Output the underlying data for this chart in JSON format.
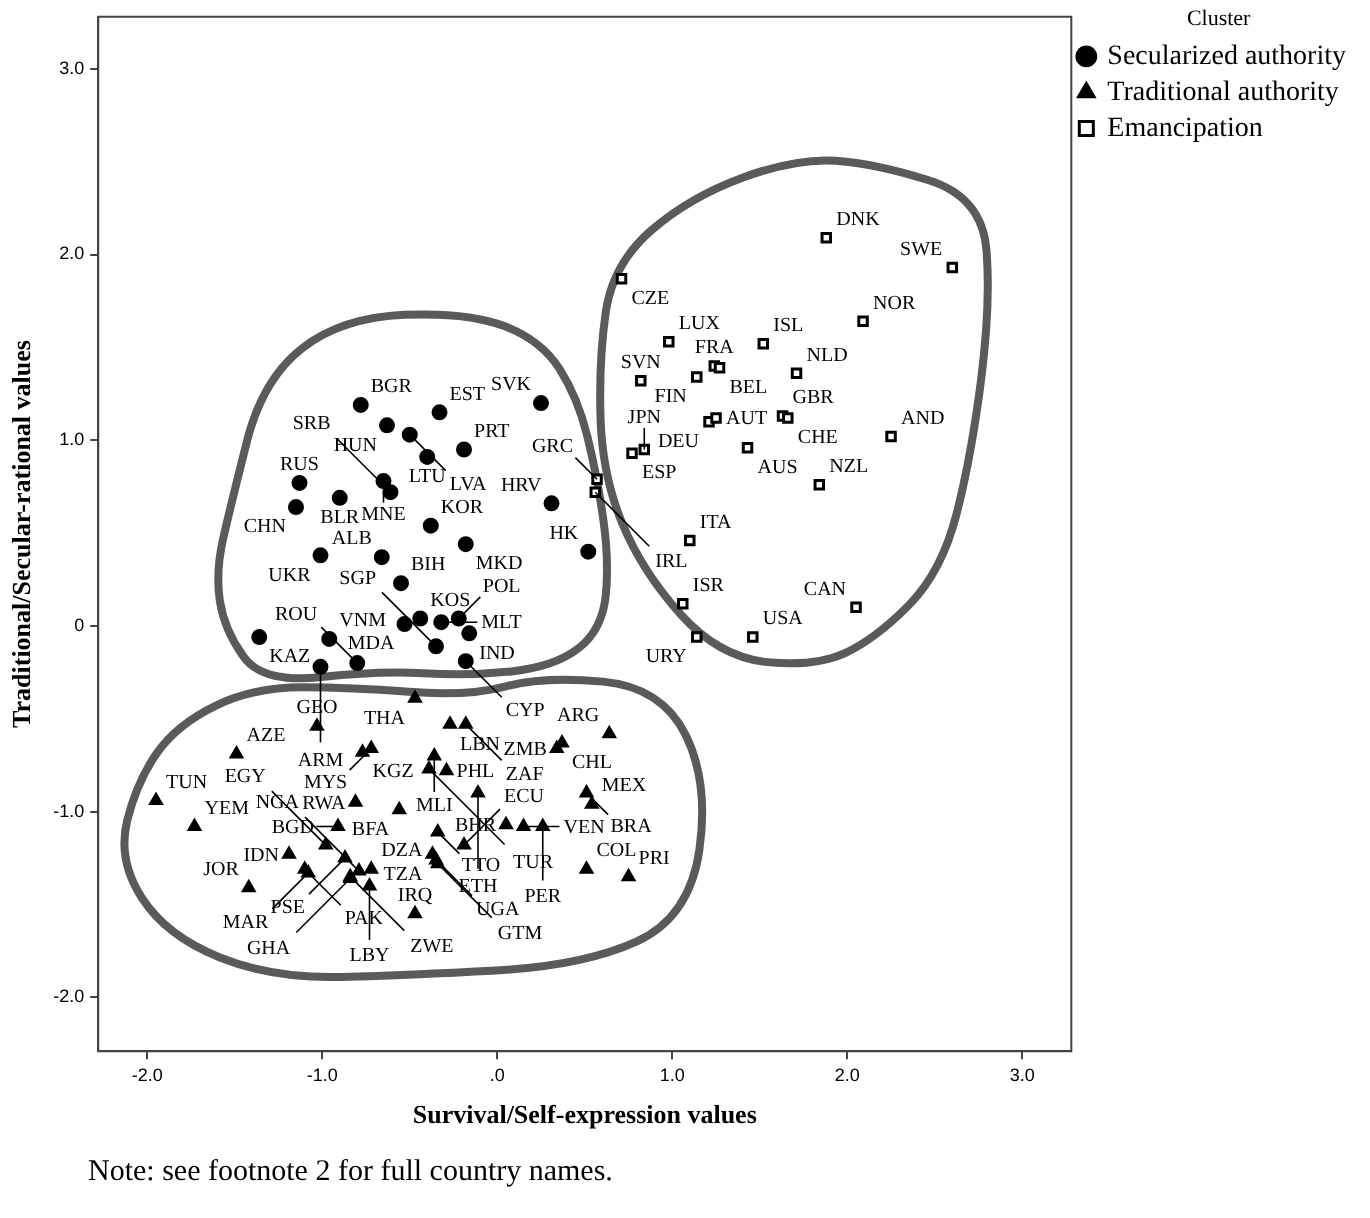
{
  "chart_data": {
    "type": "scatter",
    "xlabel": "Survival/Self-expression values",
    "ylabel": "Traditional/Secular-rational values",
    "legend_title": "Cluster",
    "legend": "top right",
    "grid": false,
    "xlim": [
      -2.28,
      3.28
    ],
    "xticks": [
      {
        "value": -2,
        "label": "-2.0"
      },
      {
        "value": -1,
        "label": "-1.0"
      },
      {
        "value": 0,
        "label": ".0"
      },
      {
        "value": 1,
        "label": "1.0"
      },
      {
        "value": 2,
        "label": "2.0"
      },
      {
        "value": 3,
        "label": "3.0"
      }
    ],
    "ylim": [
      -2.29,
      3.28
    ],
    "yticks": [
      {
        "value": -2,
        "label": "-2.0"
      },
      {
        "value": -1,
        "label": "-1.0"
      },
      0,
      {
        "value": 1,
        "label": "1.0"
      },
      {
        "value": 2,
        "label": "2.0"
      },
      {
        "value": 3,
        "label": "3.0"
      }
    ],
    "series": [
      {
        "name": "Secularized authority",
        "color": "#000000",
        "marker": "circle",
        "x": [
          -0.78,
          -0.63,
          -0.33,
          -0.5,
          -0.4,
          -0.19,
          -0.65,
          -0.61,
          -1.13,
          -0.9,
          -1.15,
          0.25,
          -0.38,
          -0.18,
          0.31,
          -0.66,
          -1.01,
          0.52,
          -0.55,
          -0.44,
          -0.96,
          -0.53,
          -0.32,
          -0.22,
          -0.16,
          -0.35,
          -0.8,
          -1.01,
          -0.18,
          -1.36
        ],
        "values": [
          1.19,
          1.08,
          1.15,
          1.03,
          0.91,
          0.95,
          0.78,
          0.72,
          0.77,
          0.69,
          0.64,
          1.2,
          0.54,
          0.44,
          0.66,
          0.37,
          0.38,
          0.4,
          0.23,
          0.04,
          -0.07,
          0.01,
          0.02,
          0.04,
          -0.04,
          -0.11,
          -0.2,
          -0.22,
          -0.19,
          -0.06
        ]
      },
      {
        "name": "Traditional authority",
        "color": "#000000",
        "marker": "triangle",
        "x": [
          -0.47,
          -0.27,
          -0.18,
          -1.03,
          -1.49,
          -0.72,
          -0.77,
          -0.36,
          -0.39,
          -0.29,
          0.37,
          0.34,
          0.64,
          -1.95,
          -0.81,
          -0.56,
          -0.11,
          -1.73,
          -0.91,
          -0.34,
          -0.19,
          0.15,
          0.05,
          0.26,
          0.51,
          0.54,
          0.51,
          0.75,
          -1.19,
          -0.98,
          -0.87,
          -1.1,
          -1.08,
          -0.84,
          -1.42,
          -0.79,
          -0.72,
          -0.37,
          -0.35,
          -0.34,
          -0.84,
          -0.73,
          -0.47
        ],
        "values": [
          -0.39,
          -0.53,
          -0.53,
          -0.54,
          -0.69,
          -0.66,
          -0.68,
          -0.7,
          -0.77,
          -0.78,
          -0.63,
          -0.66,
          -0.58,
          -0.94,
          -0.95,
          -0.99,
          -0.9,
          -1.08,
          -1.08,
          -1.11,
          -1.18,
          -1.08,
          -1.07,
          -1.08,
          -0.9,
          -0.96,
          -1.31,
          -1.35,
          -1.23,
          -1.18,
          -1.25,
          -1.31,
          -1.33,
          -1.35,
          -1.41,
          -1.32,
          -1.31,
          -1.23,
          -1.26,
          -1.28,
          -1.36,
          -1.4,
          -1.55
        ]
      },
      {
        "name": "Emancipation",
        "color": "#000000",
        "marker": "square",
        "x": [
          1.88,
          2.6,
          0.71,
          0.98,
          1.24,
          1.27,
          1.14,
          1.52,
          2.09,
          0.82,
          1.71,
          1.21,
          1.25,
          1.63,
          1.66,
          2.25,
          0.77,
          0.84,
          1.43,
          0.57,
          0.56,
          1.84,
          1.1,
          2.05,
          1.06,
          1.14,
          1.46
        ],
        "values": [
          2.09,
          1.93,
          1.87,
          1.53,
          1.4,
          1.39,
          1.34,
          1.52,
          1.64,
          1.32,
          1.36,
          1.1,
          1.12,
          1.13,
          1.12,
          1.02,
          0.93,
          0.95,
          0.96,
          0.79,
          0.72,
          0.76,
          0.46,
          0.1,
          0.12,
          -0.06,
          -0.06
        ]
      }
    ],
    "annotations": [
      {
        "text": "BGR",
        "x": -0.78,
        "y": 1.19
      },
      {
        "text": "HUN",
        "x": -0.63,
        "y": 1.08
      },
      {
        "text": "EST",
        "x": -0.33,
        "y": 1.15
      },
      {
        "text": "LVA",
        "x": -0.5,
        "y": 1.03
      },
      {
        "text": "LTU",
        "x": -0.4,
        "y": 0.91
      },
      {
        "text": "PRT",
        "x": -0.19,
        "y": 0.95
      },
      {
        "text": "MNE",
        "x": -0.65,
        "y": 0.78
      },
      {
        "text": "SRB",
        "x": -0.61,
        "y": 0.72
      },
      {
        "text": "RUS",
        "x": -1.13,
        "y": 0.77
      },
      {
        "text": "BLR",
        "x": -0.9,
        "y": 0.69
      },
      {
        "text": "CHN",
        "x": -1.15,
        "y": 0.64
      },
      {
        "text": "SVK",
        "x": 0.25,
        "y": 1.2
      },
      {
        "text": "KOR",
        "x": -0.38,
        "y": 0.54
      },
      {
        "text": "MKD",
        "x": -0.18,
        "y": 0.44
      },
      {
        "text": "HRV",
        "x": 0.31,
        "y": 0.66
      },
      {
        "text": "ALB",
        "x": -0.66,
        "y": 0.37
      },
      {
        "text": "UKR",
        "x": -1.01,
        "y": 0.38
      },
      {
        "text": "HK",
        "x": 0.52,
        "y": 0.4
      },
      {
        "text": "BIH",
        "x": -0.55,
        "y": 0.23
      },
      {
        "text": "KOS",
        "x": -0.44,
        "y": 0.04
      },
      {
        "text": "VNM",
        "x": -0.96,
        "y": -0.07
      },
      {
        "text": "MDA",
        "x": -0.53,
        "y": 0.01
      },
      {
        "text": "MLT",
        "x": -0.32,
        "y": 0.02
      },
      {
        "text": "POL",
        "x": -0.22,
        "y": 0.04
      },
      {
        "text": "IND",
        "x": -0.16,
        "y": -0.04
      },
      {
        "text": "SGP",
        "x": -0.35,
        "y": -0.11
      },
      {
        "text": "ROU",
        "x": -0.8,
        "y": -0.2
      },
      {
        "text": "ARM",
        "x": -1.01,
        "y": -0.22
      },
      {
        "text": "CYP",
        "x": -0.18,
        "y": -0.19
      },
      {
        "text": "KAZ",
        "x": -1.36,
        "y": -0.06
      },
      {
        "text": "THA",
        "x": -0.47,
        "y": -0.39
      },
      {
        "text": "LBN",
        "x": -0.27,
        "y": -0.53
      },
      {
        "text": "ZAF",
        "x": -0.18,
        "y": -0.53
      },
      {
        "text": "GEO",
        "x": -1.03,
        "y": -0.54
      },
      {
        "text": "AZE",
        "x": -1.49,
        "y": -0.69
      },
      {
        "text": "MYS",
        "x": -0.72,
        "y": -0.66
      },
      {
        "text": "KGZ",
        "x": -0.77,
        "y": -0.68
      },
      {
        "text": "MLI",
        "x": -0.36,
        "y": -0.7
      },
      {
        "text": "TUR",
        "x": -0.39,
        "y": -0.77
      },
      {
        "text": "PHL",
        "x": -0.29,
        "y": -0.78
      },
      {
        "text": "CHL",
        "x": 0.37,
        "y": -0.63
      },
      {
        "text": "ZMB",
        "x": 0.34,
        "y": -0.66
      },
      {
        "text": "ARG",
        "x": 0.64,
        "y": -0.58
      },
      {
        "text": "TUN",
        "x": -1.95,
        "y": -0.94
      },
      {
        "text": "RWA",
        "x": -0.81,
        "y": -0.95
      },
      {
        "text": "BFA",
        "x": -0.56,
        "y": -0.99
      },
      {
        "text": "ETH",
        "x": -0.11,
        "y": -0.9
      },
      {
        "text": "YEM",
        "x": -1.73,
        "y": -1.08
      },
      {
        "text": "BGD",
        "x": -0.91,
        "y": -1.08
      },
      {
        "text": "TTO",
        "x": -0.34,
        "y": -1.11
      },
      {
        "text": "ECU",
        "x": -0.19,
        "y": -1.18
      },
      {
        "text": "VEN",
        "x": 0.15,
        "y": -1.08
      },
      {
        "text": "BHR",
        "x": 0.05,
        "y": -1.07
      },
      {
        "text": "PER",
        "x": 0.26,
        "y": -1.08
      },
      {
        "text": "BRA",
        "x": 0.51,
        "y": -0.9
      },
      {
        "text": "MEX",
        "x": 0.54,
        "y": -0.96
      },
      {
        "text": "COL",
        "x": 0.51,
        "y": -1.31
      },
      {
        "text": "PRI",
        "x": 0.75,
        "y": -1.35
      },
      {
        "text": "IDN",
        "x": -1.19,
        "y": -1.23
      },
      {
        "text": "EGY",
        "x": -0.98,
        "y": -1.18
      },
      {
        "text": "PSE",
        "x": -0.87,
        "y": -1.25
      },
      {
        "text": "PAK",
        "x": -1.1,
        "y": -1.31
      },
      {
        "text": "MAR",
        "x": -1.08,
        "y": -1.33
      },
      {
        "text": "ZWE",
        "x": -0.84,
        "y": -1.35
      },
      {
        "text": "JOR",
        "x": -1.42,
        "y": -1.41
      },
      {
        "text": "NGA",
        "x": -0.79,
        "y": -1.32
      },
      {
        "text": "DZA",
        "x": -0.72,
        "y": -1.31
      },
      {
        "text": "TZA",
        "x": -0.37,
        "y": -1.23
      },
      {
        "text": "UGA",
        "x": -0.35,
        "y": -1.26
      },
      {
        "text": "GTM",
        "x": -0.34,
        "y": -1.28
      },
      {
        "text": "GHA",
        "x": -0.84,
        "y": -1.36
      },
      {
        "text": "LBY",
        "x": -0.73,
        "y": -1.4
      },
      {
        "text": "IRQ",
        "x": -0.47,
        "y": -1.55
      },
      {
        "text": "DNK",
        "x": 1.88,
        "y": 2.09
      },
      {
        "text": "SWE",
        "x": 2.6,
        "y": 1.93
      },
      {
        "text": "CZE",
        "x": 0.71,
        "y": 1.87
      },
      {
        "text": "LUX",
        "x": 0.98,
        "y": 1.53
      },
      {
        "text": "FRA",
        "x": 1.24,
        "y": 1.4
      },
      {
        "text": "BEL",
        "x": 1.27,
        "y": 1.39
      },
      {
        "text": "FIN",
        "x": 1.14,
        "y": 1.34
      },
      {
        "text": "ISL",
        "x": 1.52,
        "y": 1.52
      },
      {
        "text": "NOR",
        "x": 2.09,
        "y": 1.64
      },
      {
        "text": "SVN",
        "x": 0.82,
        "y": 1.32
      },
      {
        "text": "NLD",
        "x": 1.71,
        "y": 1.36
      },
      {
        "text": "DEU",
        "x": 1.21,
        "y": 1.1
      },
      {
        "text": "AUT",
        "x": 1.25,
        "y": 1.12
      },
      {
        "text": "GBR",
        "x": 1.63,
        "y": 1.13
      },
      {
        "text": "CHE",
        "x": 1.66,
        "y": 1.12
      },
      {
        "text": "AND",
        "x": 2.25,
        "y": 1.02
      },
      {
        "text": "ESP",
        "x": 0.77,
        "y": 0.93
      },
      {
        "text": "JPN",
        "x": 0.84,
        "y": 0.95
      },
      {
        "text": "AUS",
        "x": 1.43,
        "y": 0.96
      },
      {
        "text": "GRC",
        "x": 0.57,
        "y": 0.79
      },
      {
        "text": "IRL",
        "x": 0.56,
        "y": 0.72
      },
      {
        "text": "NZL",
        "x": 1.84,
        "y": 0.76
      },
      {
        "text": "ITA",
        "x": 1.1,
        "y": 0.46
      },
      {
        "text": "CAN",
        "x": 2.05,
        "y": 0.1
      },
      {
        "text": "ISR",
        "x": 1.06,
        "y": 0.12
      },
      {
        "text": "URY",
        "x": 1.14,
        "y": -0.06
      },
      {
        "text": "USA",
        "x": 1.46,
        "y": -0.06
      },
      "Note: see footnote 2 for full country names."
    ]
  }
}
